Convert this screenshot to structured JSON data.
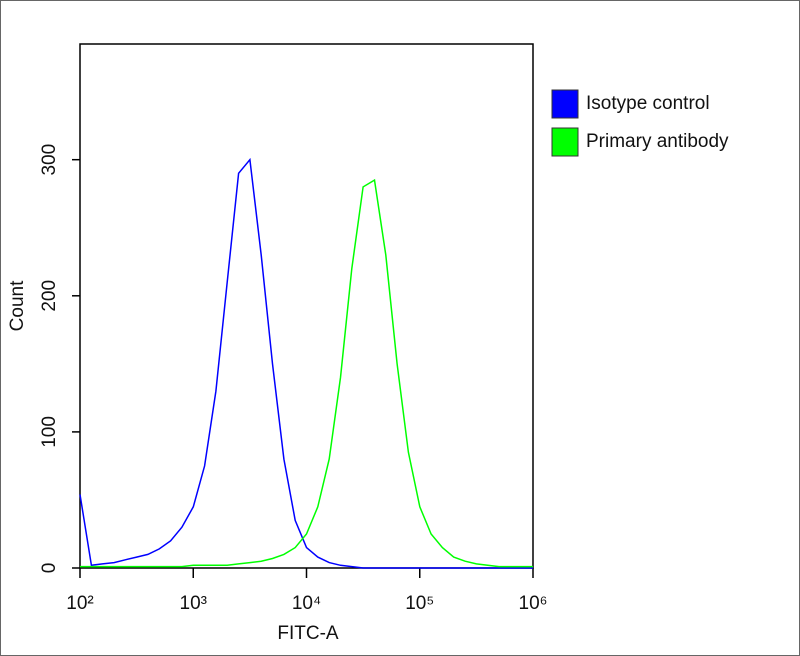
{
  "chart_data": {
    "type": "line",
    "x_label": "FITC-A",
    "y_label": "Count",
    "x_scale": "log",
    "x": [
      100,
      126,
      158,
      200,
      251,
      316,
      398,
      501,
      631,
      794,
      1000,
      1259,
      1585,
      1995,
      2512,
      3162,
      3981,
      5012,
      6310,
      7943,
      10000,
      12589,
      15849,
      19953,
      25119,
      31623,
      39811,
      50119,
      63096,
      79433,
      100000,
      125893,
      158489,
      199526,
      251189,
      316228,
      398107,
      501187,
      630957,
      794328,
      1000000
    ],
    "series": [
      {
        "name": "Isotype control",
        "color": "#0000ff",
        "values": [
          54,
          2,
          3,
          4,
          6,
          8,
          10,
          14,
          20,
          30,
          45,
          75,
          130,
          210,
          290,
          300,
          230,
          150,
          80,
          35,
          15,
          8,
          4,
          2,
          1,
          0,
          0,
          0,
          0,
          0,
          0,
          0,
          0,
          0,
          0,
          0,
          0,
          0,
          0,
          0,
          0
        ]
      },
      {
        "name": "Primary antibody",
        "color": "#00ff00",
        "values": [
          1,
          1,
          1,
          1,
          1,
          1,
          1,
          1,
          1,
          1,
          2,
          2,
          2,
          2,
          3,
          4,
          5,
          7,
          10,
          15,
          25,
          45,
          80,
          140,
          220,
          280,
          285,
          230,
          150,
          85,
          45,
          25,
          15,
          8,
          5,
          3,
          2,
          1,
          1,
          1,
          1
        ]
      }
    ],
    "xlim": [
      100,
      1000000
    ],
    "xticks": [
      {
        "value": 100,
        "label": "10²"
      },
      {
        "value": 1000,
        "label": "10³"
      },
      {
        "value": 10000,
        "label": "10⁴"
      },
      {
        "value": 100000,
        "label": "10⁵"
      },
      {
        "value": 1000000,
        "label": "10⁶"
      }
    ],
    "ylim": [
      0,
      385
    ],
    "yticks": [
      0,
      100,
      200,
      300
    ],
    "legend": "outside-right"
  }
}
